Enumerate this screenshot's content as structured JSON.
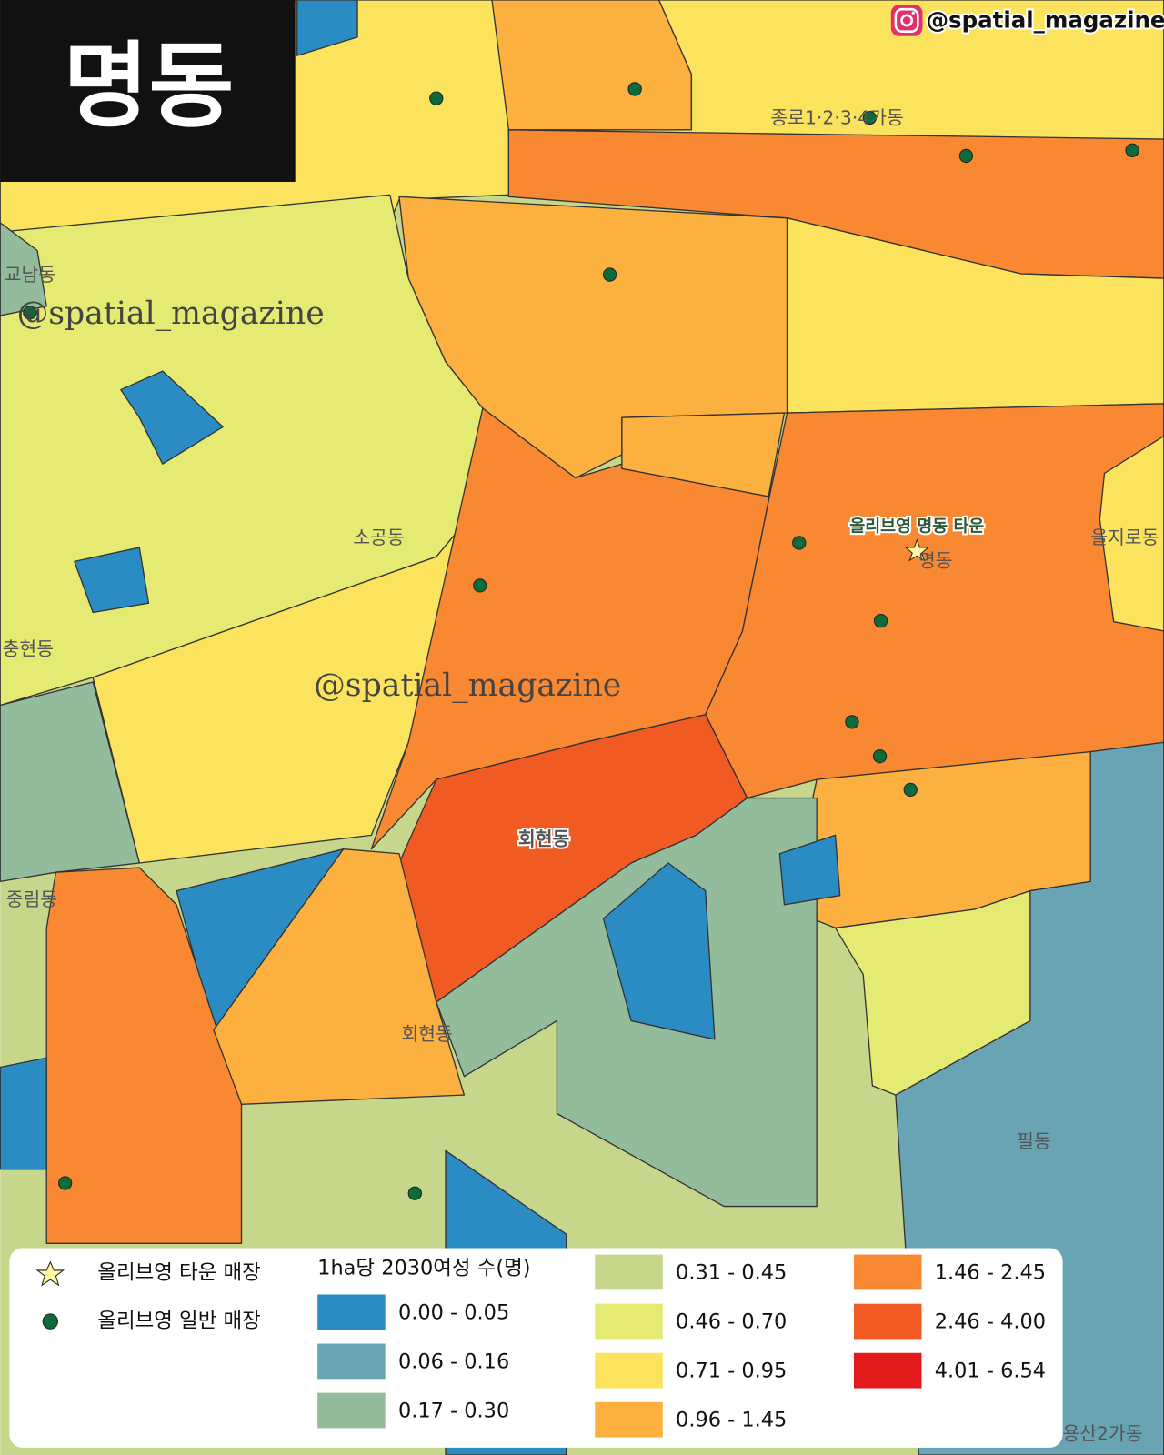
{
  "title": "명동",
  "handle": "@spatial_magazine",
  "watermarks": [
    "@spatial_magazine",
    "@spatial_magazine"
  ],
  "place_labels": [
    "교남동",
    "종로1·2·3·4가동",
    "소공동",
    "충현동",
    "명동",
    "을지로동",
    "회현동",
    "중림동",
    "회현동",
    "필동",
    "용산2가동"
  ],
  "store_label": "올리브영 명동 타운",
  "legend": {
    "markers": [
      {
        "label": "올리브영 타운 매장"
      },
      {
        "label": "올리브영 일반 매장"
      }
    ],
    "title": "1ha당 2030여성 수(명)",
    "classes": [
      {
        "label": "0.00 - 0.05",
        "color": "#2b8cc4"
      },
      {
        "label": "0.06 - 0.16",
        "color": "#68a4b3"
      },
      {
        "label": "0.17 - 0.30",
        "color": "#93bc9c"
      },
      {
        "label": "0.31 - 0.45",
        "color": "#c6d68a"
      },
      {
        "label": "0.46 - 0.70",
        "color": "#e5ea72"
      },
      {
        "label": "0.71 - 0.95",
        "color": "#fce35e"
      },
      {
        "label": "0.96 - 1.45",
        "color": "#fbb040"
      },
      {
        "label": "1.46 - 2.45",
        "color": "#f98833"
      },
      {
        "label": "2.46 - 4.00",
        "color": "#f05a23"
      },
      {
        "label": "4.01 - 6.54",
        "color": "#e31a1c"
      }
    ]
  }
}
